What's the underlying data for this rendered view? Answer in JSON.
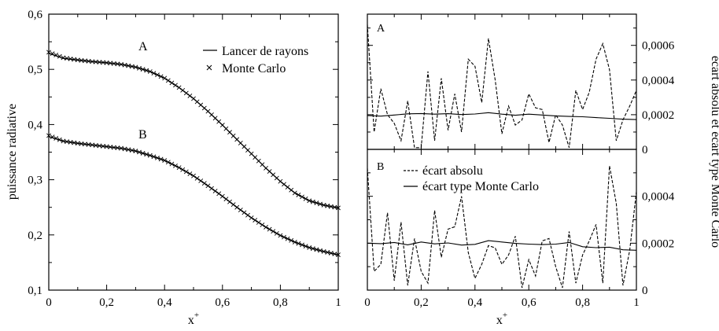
{
  "chart_data": [
    {
      "type": "line",
      "xlabel": "x+",
      "ylabel": "puissance radiative",
      "xlim": [
        0,
        1
      ],
      "ylim": [
        0.1,
        0.6
      ],
      "xticks": [
        "0",
        "0,2",
        "0,4",
        "0,6",
        "0,8",
        "1"
      ],
      "yticks": [
        "0,1",
        "0,2",
        "0,3",
        "0,4",
        "0,5",
        "0,6"
      ],
      "curve_labels": [
        "A",
        "B"
      ],
      "legend": {
        "placement": "top-right",
        "entries": [
          "Lancer de rayons",
          "Monte Carlo"
        ]
      },
      "series": [
        {
          "name": "Lancer de rayons",
          "curve": "A",
          "style": "line",
          "x": [
            0,
            0.05,
            0.1,
            0.15,
            0.2,
            0.25,
            0.3,
            0.35,
            0.4,
            0.45,
            0.5,
            0.55,
            0.6,
            0.65,
            0.7,
            0.75,
            0.8,
            0.85,
            0.9,
            0.95,
            1.0
          ],
          "y": [
            0.529,
            0.52,
            0.517,
            0.514,
            0.512,
            0.509,
            0.504,
            0.496,
            0.484,
            0.467,
            0.447,
            0.424,
            0.399,
            0.373,
            0.347,
            0.321,
            0.297,
            0.276,
            0.262,
            0.254,
            0.249
          ]
        },
        {
          "name": "Monte Carlo",
          "curve": "A",
          "style": "x-markers",
          "x": [
            0,
            0.05,
            0.1,
            0.15,
            0.2,
            0.25,
            0.3,
            0.35,
            0.4,
            0.45,
            0.5,
            0.55,
            0.6,
            0.65,
            0.7,
            0.75,
            0.8,
            0.85,
            0.9,
            0.95,
            1.0
          ],
          "y": [
            0.531,
            0.521,
            0.517,
            0.514,
            0.512,
            0.509,
            0.504,
            0.496,
            0.484,
            0.467,
            0.447,
            0.424,
            0.399,
            0.373,
            0.347,
            0.321,
            0.297,
            0.276,
            0.262,
            0.254,
            0.249
          ]
        },
        {
          "name": "Lancer de rayons",
          "curve": "B",
          "style": "line",
          "x": [
            0,
            0.05,
            0.1,
            0.15,
            0.2,
            0.25,
            0.3,
            0.35,
            0.4,
            0.45,
            0.5,
            0.55,
            0.6,
            0.65,
            0.7,
            0.75,
            0.8,
            0.85,
            0.9,
            0.95,
            1.0
          ],
          "y": [
            0.378,
            0.37,
            0.366,
            0.363,
            0.36,
            0.357,
            0.352,
            0.344,
            0.335,
            0.322,
            0.307,
            0.289,
            0.27,
            0.25,
            0.231,
            0.214,
            0.199,
            0.187,
            0.177,
            0.17,
            0.164
          ]
        },
        {
          "name": "Monte Carlo",
          "curve": "B",
          "style": "x-markers",
          "x": [
            0,
            0.05,
            0.1,
            0.15,
            0.2,
            0.25,
            0.3,
            0.35,
            0.4,
            0.45,
            0.5,
            0.55,
            0.6,
            0.65,
            0.7,
            0.75,
            0.8,
            0.85,
            0.9,
            0.95,
            1.0
          ],
          "y": [
            0.38,
            0.37,
            0.366,
            0.363,
            0.36,
            0.357,
            0.352,
            0.344,
            0.335,
            0.322,
            0.307,
            0.289,
            0.27,
            0.25,
            0.231,
            0.214,
            0.199,
            0.187,
            0.177,
            0.17,
            0.164
          ]
        }
      ]
    },
    {
      "type": "line",
      "panel_label": "A",
      "xlim": [
        0,
        1
      ],
      "ylim": [
        0,
        0.00078
      ],
      "yticks": [
        "0",
        "0,0002",
        "0,0004",
        "0,0006"
      ],
      "ytick_values": [
        0,
        0.0002,
        0.0004,
        0.0006
      ],
      "series": [
        {
          "name": "écart absolu",
          "style": "dashed",
          "x": [
            0,
            0.025,
            0.05,
            0.075,
            0.1,
            0.125,
            0.15,
            0.175,
            0.2,
            0.225,
            0.25,
            0.275,
            0.3,
            0.325,
            0.35,
            0.375,
            0.4,
            0.425,
            0.45,
            0.475,
            0.5,
            0.525,
            0.55,
            0.575,
            0.6,
            0.625,
            0.65,
            0.675,
            0.7,
            0.725,
            0.75,
            0.775,
            0.8,
            0.825,
            0.85,
            0.875,
            0.9,
            0.925,
            0.95,
            0.975,
            1.0
          ],
          "y": [
            0.00072,
            0.0001,
            0.00035,
            0.0002,
            0.00015,
            5e-05,
            0.00028,
            1e-05,
            1e-05,
            0.00045,
            5e-05,
            0.00041,
            0.00011,
            0.00032,
            0.0001,
            0.00052,
            0.00048,
            0.00027,
            0.00064,
            0.0004,
            9e-05,
            0.00025,
            0.00014,
            0.00017,
            0.00032,
            0.00024,
            0.00023,
            4e-05,
            0.0002,
            0.00014,
            1e-05,
            0.00034,
            0.00023,
            0.00033,
            0.00052,
            0.00061,
            0.00046,
            5e-05,
            0.00017,
            0.00025,
            0.00034
          ]
        },
        {
          "name": "écart type Monte Carlo",
          "style": "solid",
          "x": [
            0,
            0.05,
            0.1,
            0.15,
            0.2,
            0.25,
            0.3,
            0.35,
            0.4,
            0.45,
            0.5,
            0.55,
            0.6,
            0.65,
            0.7,
            0.75,
            0.8,
            0.85,
            0.9,
            0.95,
            1.0
          ],
          "y": [
            0.000195,
            0.000192,
            0.000198,
            0.000205,
            0.000207,
            0.000203,
            0.000206,
            0.000201,
            0.000204,
            0.000212,
            0.000203,
            0.000197,
            0.000203,
            0.000198,
            0.000193,
            0.00019,
            0.000188,
            0.000183,
            0.000179,
            0.000174,
            0.000172
          ]
        }
      ]
    },
    {
      "type": "line",
      "panel_label": "B",
      "xlabel": "x+",
      "xlim": [
        0,
        1
      ],
      "xticks": [
        "0",
        "0,2",
        "0,4",
        "0,6",
        "0,8",
        "1"
      ],
      "ylim": [
        0,
        0.0006
      ],
      "yticks": [
        "0",
        "0,0002",
        "0,0004"
      ],
      "ytick_values": [
        0,
        0.0002,
        0.0004
      ],
      "shared_ylabel": "écart absolu et écart type Monte Carlo",
      "legend": {
        "placement": "top-left",
        "entries": [
          "écart absolu",
          "écart type Monte Carlo"
        ]
      },
      "series": [
        {
          "name": "écart absolu",
          "style": "dashed",
          "x": [
            0,
            0.025,
            0.05,
            0.075,
            0.1,
            0.125,
            0.15,
            0.175,
            0.2,
            0.225,
            0.25,
            0.275,
            0.3,
            0.325,
            0.35,
            0.375,
            0.4,
            0.425,
            0.45,
            0.475,
            0.5,
            0.525,
            0.55,
            0.575,
            0.6,
            0.625,
            0.65,
            0.675,
            0.7,
            0.725,
            0.75,
            0.775,
            0.8,
            0.825,
            0.85,
            0.875,
            0.9,
            0.925,
            0.95,
            0.975,
            1.0
          ],
          "y": [
            0.00052,
            8e-05,
            0.00011,
            0.00033,
            4e-05,
            0.00029,
            2e-05,
            0.00022,
            8e-05,
            3e-05,
            0.00034,
            0.00014,
            0.00026,
            0.00027,
            0.0004,
            0.00016,
            5e-05,
            0.00011,
            0.00019,
            0.00018,
            0.00011,
            0.00015,
            0.00023,
            1e-05,
            0.00013,
            6e-05,
            0.00021,
            0.00022,
            0.0001,
            1e-05,
            0.00025,
            3e-05,
            0.00015,
            0.00021,
            0.00028,
            3e-05,
            0.00053,
            0.00037,
            2e-05,
            0.00017,
            0.00042
          ]
        },
        {
          "name": "écart type Monte Carlo",
          "style": "solid",
          "x": [
            0,
            0.05,
            0.1,
            0.15,
            0.2,
            0.25,
            0.3,
            0.35,
            0.4,
            0.45,
            0.5,
            0.55,
            0.6,
            0.65,
            0.7,
            0.75,
            0.8,
            0.85,
            0.9,
            0.95,
            1.0
          ],
          "y": [
            0.0002,
            0.000198,
            0.000203,
            0.000193,
            0.000205,
            0.000197,
            0.000201,
            0.000192,
            0.000195,
            0.000211,
            0.000205,
            0.000199,
            0.000196,
            0.000194,
            0.000196,
            0.000203,
            0.000185,
            0.000181,
            0.000183,
            0.000172,
            0.00017
          ]
        }
      ]
    }
  ]
}
